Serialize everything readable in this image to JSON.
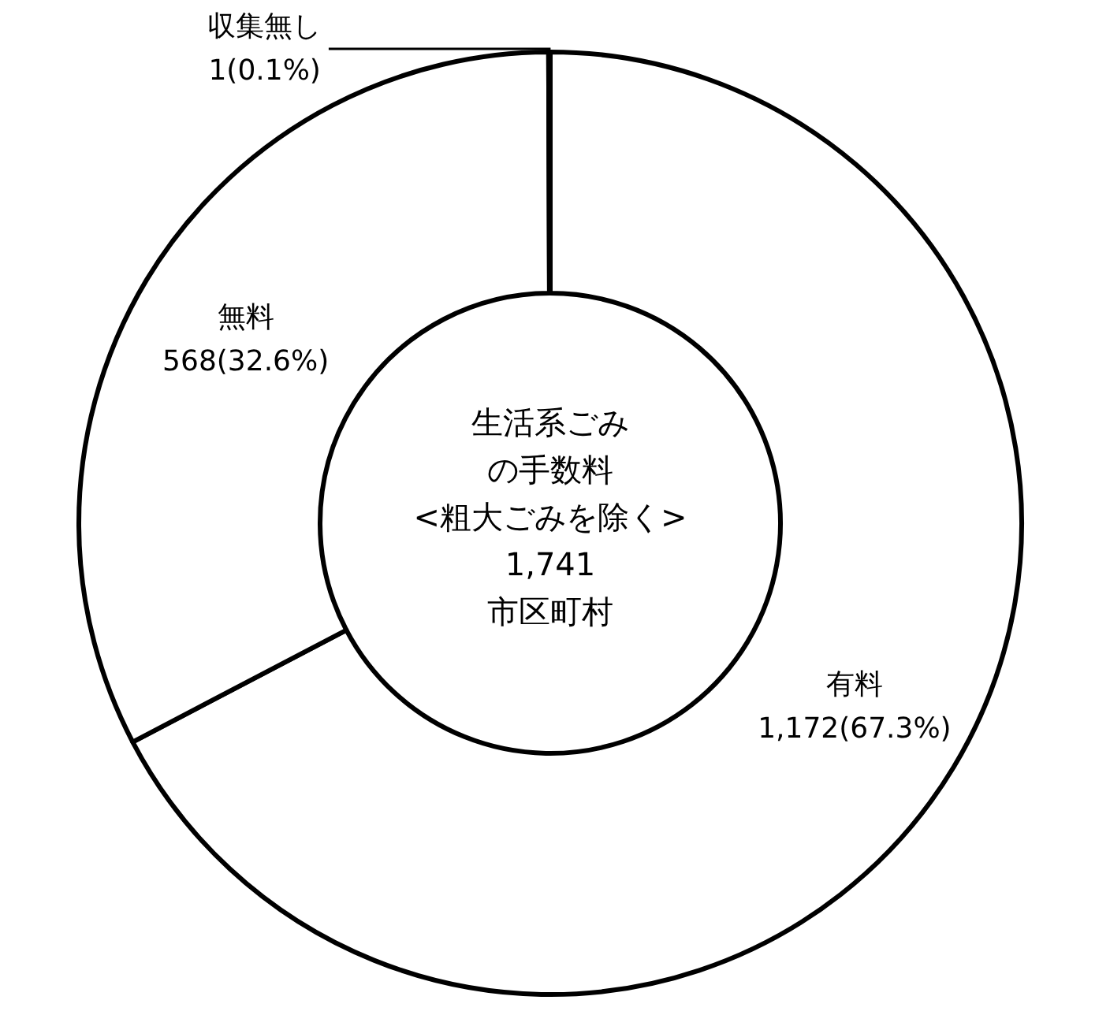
{
  "chart_data": {
    "type": "donut",
    "categories": [
      "有料",
      "無料",
      "収集無し"
    ],
    "values": [
      1172,
      568,
      1
    ],
    "value_labels": [
      "1,172(67.3%)",
      "568(32.6%)",
      "1(0.1%)"
    ],
    "colors": [
      "#ffffff",
      "#ffffff",
      "#ffffff"
    ],
    "annotations": [
      "生活系ごみの手数料\n<粗大ごみを除く>\n1,741\n市区町村"
    ]
  }
}
